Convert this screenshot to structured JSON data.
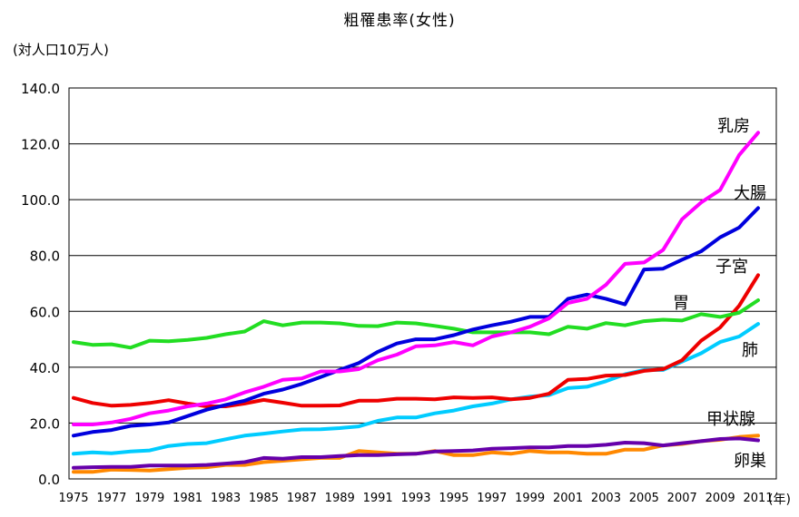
{
  "chart_data": {
    "type": "line",
    "title": "粗罹患率(女性)",
    "ylabel": "(対人口10万人)",
    "xlabel": "(年)",
    "ylim": [
      0,
      140
    ],
    "yticks": [
      0,
      20,
      40,
      60,
      80,
      100,
      120,
      140
    ],
    "ytick_labels": [
      "0.0",
      "20.0",
      "40.0",
      "60.0",
      "80.0",
      "100.0",
      "120.0",
      "140.0"
    ],
    "grid": true,
    "x": [
      1975,
      1976,
      1977,
      1978,
      1979,
      1980,
      1981,
      1982,
      1983,
      1984,
      1985,
      1986,
      1987,
      1988,
      1989,
      1990,
      1991,
      1992,
      1993,
      1994,
      1995,
      1996,
      1997,
      1998,
      1999,
      2000,
      2001,
      2002,
      2003,
      2004,
      2005,
      2006,
      2007,
      2008,
      2009,
      2010,
      2011
    ],
    "xtick_labels": [
      "1975",
      "1977",
      "1979",
      "1981",
      "1983",
      "1985",
      "1987",
      "1989",
      "1991",
      "1993",
      "1995",
      "1997",
      "1999",
      "2001",
      "2003",
      "2005",
      "2007",
      "2009",
      "2011"
    ],
    "series": [
      {
        "name": "胃",
        "color": "#22dd22",
        "values": [
          49,
          48,
          48.2,
          47,
          49.5,
          49.3,
          49.8,
          50.5,
          51.8,
          52.8,
          56.5,
          55,
          56,
          56,
          55.7,
          54.8,
          54.7,
          56,
          55.7,
          54.8,
          53.8,
          52.5,
          52.5,
          52.5,
          52.5,
          51.8,
          54.5,
          53.8,
          55.8,
          55,
          56.5,
          57,
          56.7,
          59,
          58,
          59.5,
          64
        ]
      },
      {
        "name": "大腸",
        "color": "#0000dd",
        "values": [
          15.5,
          16.8,
          17.5,
          19,
          19.5,
          20.2,
          22.5,
          24.8,
          26.5,
          28,
          30.5,
          32,
          34,
          36.5,
          39,
          41.5,
          45.5,
          48.5,
          50,
          50,
          51.5,
          53.5,
          55,
          56.3,
          58,
          58,
          64.5,
          66,
          64.5,
          62.5,
          75,
          75.3,
          78.5,
          81.5,
          86.5,
          90,
          97
        ]
      },
      {
        "name": "乳房",
        "color": "#ff00ff",
        "values": [
          19.5,
          19.5,
          20.2,
          21.5,
          23.5,
          24.5,
          26,
          27,
          28.5,
          31,
          33,
          35.5,
          36,
          38.5,
          38.5,
          39.3,
          42.5,
          44.5,
          47.5,
          47.8,
          49,
          47.8,
          51,
          52.5,
          54.5,
          57.5,
          63,
          64.5,
          69.5,
          77,
          77.5,
          82,
          93,
          99,
          103.5,
          116,
          124
        ]
      },
      {
        "name": "子宮",
        "color": "#ee0000",
        "values": [
          29,
          27.2,
          26.2,
          26.5,
          27.2,
          28.2,
          27,
          26,
          26,
          27,
          28.3,
          27.3,
          26.2,
          26.2,
          26.3,
          28,
          28,
          28.7,
          28.7,
          28.5,
          29.2,
          29,
          29.2,
          28.5,
          29,
          30.5,
          35.5,
          35.8,
          37,
          37.2,
          38.7,
          39.3,
          42.5,
          49.5,
          54.2,
          62,
          73
        ]
      },
      {
        "name": "肺",
        "color": "#00ccff",
        "values": [
          9,
          9.5,
          9.2,
          9.8,
          10.2,
          11.8,
          12.5,
          12.8,
          14.2,
          15.5,
          16.2,
          17,
          17.7,
          17.8,
          18.2,
          18.8,
          20.8,
          22,
          22,
          23.5,
          24.5,
          26,
          27,
          28.5,
          29.5,
          30,
          32.5,
          33,
          35,
          37.5,
          39,
          39,
          42,
          45,
          49,
          51,
          55.5
        ]
      },
      {
        "name": "甲状腺",
        "color": "#6600aa",
        "values": [
          4,
          4.2,
          4.3,
          4.3,
          4.8,
          4.8,
          4.8,
          5,
          5.5,
          6,
          7.5,
          7.2,
          7.8,
          7.8,
          8.2,
          8.5,
          8.5,
          8.8,
          9,
          9.8,
          10,
          10.2,
          10.8,
          11,
          11.3,
          11.3,
          11.8,
          11.8,
          12.2,
          13,
          12.8,
          12,
          12.8,
          13.5,
          14.3,
          14.5,
          13.8
        ]
      },
      {
        "name": "卵巣",
        "color": "#ff8800",
        "values": [
          2.5,
          2.5,
          3.3,
          3.2,
          3,
          3.5,
          4,
          4.2,
          5,
          5,
          6,
          6.5,
          7,
          7.5,
          7.5,
          10,
          9.5,
          9,
          9,
          10,
          8.5,
          8.5,
          9.5,
          9,
          10,
          9.5,
          9.5,
          9,
          9,
          10.5,
          10.5,
          12,
          12.5,
          13.5,
          14,
          15,
          15.5
        ]
      }
    ],
    "series_labels": [
      "乳房",
      "大腸",
      "子宮",
      "胃",
      "肺",
      "甲状腺",
      "卵巣"
    ]
  }
}
